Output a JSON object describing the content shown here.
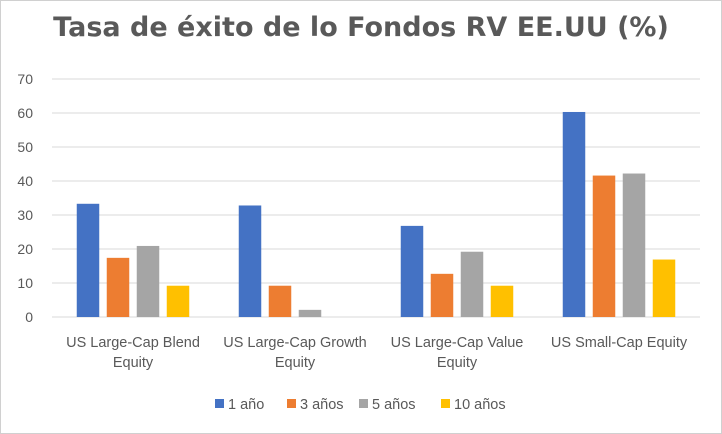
{
  "chart_data": {
    "type": "bar",
    "title": "Tasa de éxito de lo Fondos RV EE.UU (%)",
    "categories": [
      [
        "US Large-Cap Blend",
        "Equity"
      ],
      [
        "US Large-Cap Growth",
        "Equity"
      ],
      [
        "US Large-Cap Value",
        "Equity"
      ],
      [
        "US Small-Cap Equity"
      ]
    ],
    "series": [
      {
        "name": "1 año",
        "color": "#4472c4",
        "values": [
          33.3,
          32.8,
          26.8,
          60.3
        ]
      },
      {
        "name": "3 años",
        "color": "#ed7d31",
        "values": [
          17.4,
          9.2,
          12.7,
          41.6
        ]
      },
      {
        "name": "5 años",
        "color": "#a5a5a5",
        "values": [
          20.9,
          2.1,
          19.2,
          42.2
        ]
      },
      {
        "name": "10 años",
        "color": "#ffc000",
        "values": [
          9.2,
          0,
          9.2,
          16.9
        ]
      }
    ],
    "ylim": [
      0,
      70
    ],
    "yticks": [
      0,
      10,
      20,
      30,
      40,
      50,
      60,
      70
    ],
    "grid": true,
    "legend_position": "bottom",
    "colors": {
      "gridline": "#d9d9d9",
      "axis_text": "#595959"
    }
  }
}
